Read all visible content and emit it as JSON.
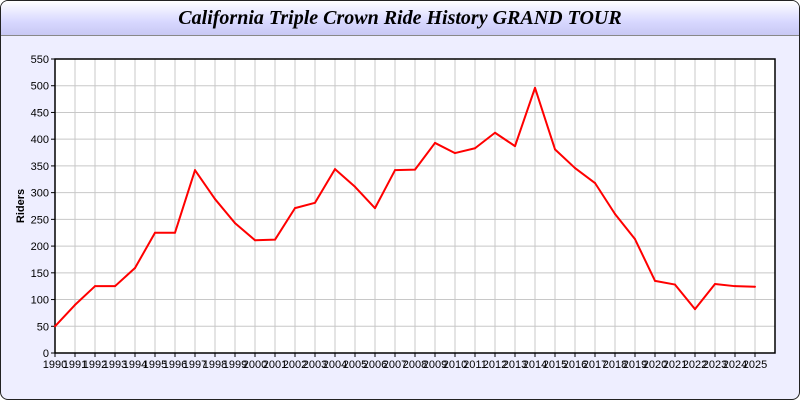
{
  "chart_data": {
    "type": "line",
    "title": "California Triple Crown Ride History GRAND TOUR",
    "xlabel": "",
    "ylabel": "Riders",
    "x": [
      1990,
      1991,
      1992,
      1993,
      1994,
      1995,
      1996,
      1997,
      1998,
      1999,
      2000,
      2001,
      2002,
      2003,
      2004,
      2005,
      2006,
      2007,
      2008,
      2009,
      2010,
      2011,
      2012,
      2013,
      2014,
      2015,
      2016,
      2017,
      2018,
      2019,
      2020,
      2021,
      2022,
      2023,
      2024,
      2025
    ],
    "series": [
      {
        "values": [
          50,
          90,
          125,
          125,
          159,
          225,
          225,
          342,
          288,
          243,
          211,
          212,
          271,
          281,
          344,
          311,
          271,
          342,
          343,
          393,
          374,
          383,
          412,
          387,
          496,
          381,
          346,
          318,
          260,
          213,
          135,
          128,
          82,
          129,
          125,
          124
        ],
        "color": "#ff0000"
      }
    ],
    "xlim": [
      1990,
      2026
    ],
    "ylim": [
      0,
      550
    ],
    "yticks": [
      0,
      50,
      100,
      150,
      200,
      250,
      300,
      350,
      400,
      450,
      500,
      550
    ],
    "grid": true,
    "legend": "none"
  }
}
